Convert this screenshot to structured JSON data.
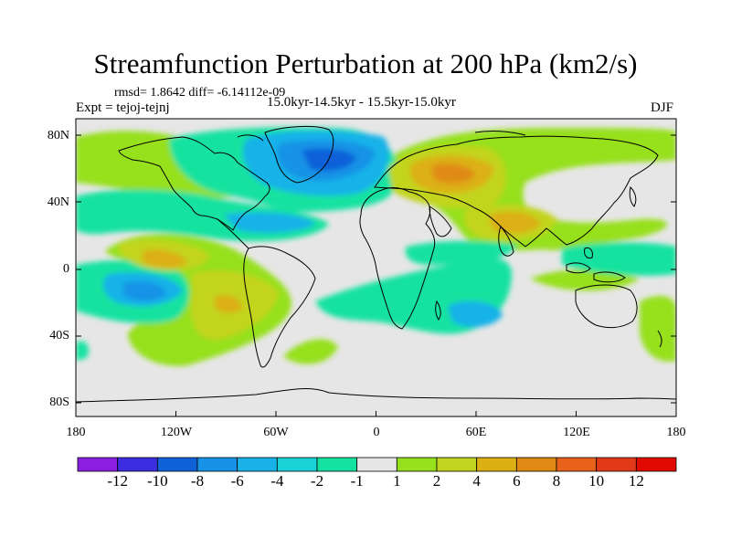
{
  "title": "Streamfunction Perturbation at 200 hPa (km2/s)",
  "stats_line": "rmsd= 1.8642  diff= -6.14112e-09",
  "experiment_label": "Expt = tejoj-tejnj",
  "period_label": "15.0kyr-14.5kyr - 15.5kyr-15.0kyr",
  "season_label": "DJF",
  "map": {
    "projection": "cylindrical equidistant",
    "lon_range": [
      -180,
      180
    ],
    "lat_range": [
      -90,
      90
    ],
    "x_tick_labels": [
      "180",
      "120W",
      "60W",
      "0",
      "60E",
      "120E",
      "180"
    ],
    "y_tick_labels": [
      "80N",
      "40N",
      "0",
      "40S",
      "80S"
    ],
    "background_color": "#e6e6e6",
    "coastline_color": "#000000"
  },
  "colorbar": {
    "tick_labels": [
      "-12",
      "-10",
      "-8",
      "-6",
      "-4",
      "-2",
      "-1",
      "1",
      "2",
      "4",
      "6",
      "8",
      "10",
      "12"
    ],
    "colors": [
      "#8a1fe0",
      "#3c2ee0",
      "#1060d8",
      "#1892e6",
      "#18b2e8",
      "#18d2d8",
      "#14e2a0",
      "#e6e6e6",
      "#96e01e",
      "#c2d41e",
      "#dcb012",
      "#e08a14",
      "#e8621c",
      "#e23a18",
      "#e00a00"
    ]
  }
}
